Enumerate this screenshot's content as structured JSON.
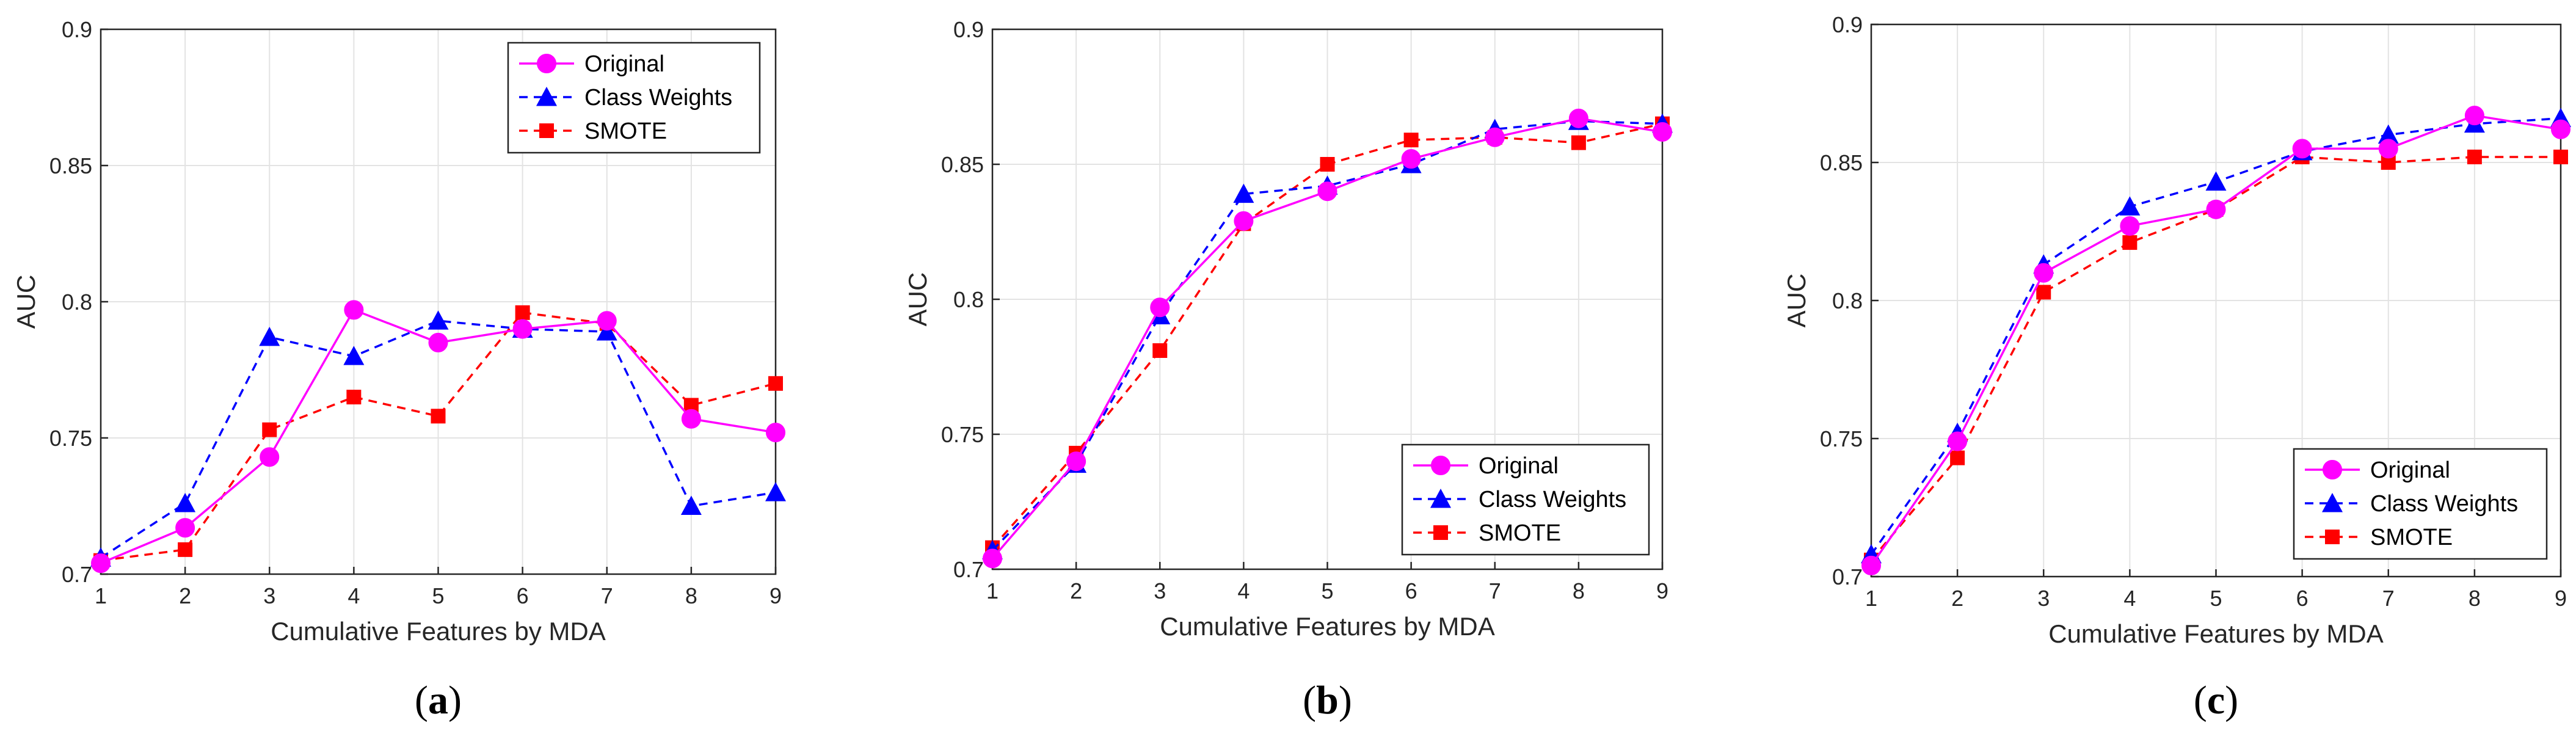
{
  "styles": {
    "colors": {
      "original": "#ff00ff",
      "class_weights": "#0000ff",
      "smote": "#ff0000",
      "grid": "#e3e3e3",
      "axis": "#262626"
    },
    "markers": {
      "original": "circle",
      "class_weights": "triangle-up",
      "smote": "square"
    },
    "line_styles": {
      "original": "solid",
      "class_weights": "dashed",
      "smote": "dashed"
    }
  },
  "chart_data": [
    {
      "type": "line",
      "panel": "a",
      "panel_label_open": "(",
      "panel_label_letter": "a",
      "panel_label_close": ")",
      "xlabel": "Cumulative Features by MDA",
      "ylabel": "AUC",
      "x": [
        1,
        2,
        3,
        4,
        5,
        6,
        7,
        8,
        9
      ],
      "xlim": [
        1,
        9
      ],
      "ylim": [
        0.7,
        0.9
      ],
      "xticks": [
        "1",
        "2",
        "3",
        "4",
        "5",
        "6",
        "7",
        "8",
        "9"
      ],
      "yticks": [
        "0.7",
        "0.75",
        "0.8",
        "0.85",
        "0.9"
      ],
      "grid": true,
      "legend_position": "top-right",
      "series": [
        {
          "name": "Original",
          "key": "original",
          "values": [
            0.704,
            0.717,
            0.743,
            0.797,
            0.785,
            0.79,
            0.793,
            0.757,
            0.752
          ]
        },
        {
          "name": "Class Weights",
          "key": "class_weights",
          "values": [
            0.706,
            0.726,
            0.787,
            0.78,
            0.793,
            0.79,
            0.789,
            0.725,
            0.73
          ]
        },
        {
          "name": "SMOTE",
          "key": "smote",
          "values": [
            0.705,
            0.709,
            0.753,
            0.765,
            0.758,
            0.796,
            0.792,
            0.762,
            0.77
          ]
        }
      ]
    },
    {
      "type": "line",
      "panel": "b",
      "panel_label_open": "(",
      "panel_label_letter": "b",
      "panel_label_close": ")",
      "xlabel": "Cumulative Features by MDA",
      "ylabel": "AUC",
      "x": [
        1,
        2,
        3,
        4,
        5,
        6,
        7,
        8,
        9
      ],
      "xlim": [
        1,
        9
      ],
      "ylim": [
        0.7,
        0.9
      ],
      "xticks": [
        "1",
        "2",
        "3",
        "4",
        "5",
        "6",
        "7",
        "8",
        "9"
      ],
      "yticks": [
        "0.7",
        "0.75",
        "0.8",
        "0.85",
        "0.9"
      ],
      "grid": true,
      "legend_position": "bottom-right",
      "series": [
        {
          "name": "Original",
          "key": "original",
          "values": [
            0.704,
            0.74,
            0.797,
            0.829,
            0.84,
            0.852,
            0.86,
            0.867,
            0.862
          ]
        },
        {
          "name": "Class Weights",
          "key": "class_weights",
          "values": [
            0.707,
            0.739,
            0.794,
            0.839,
            0.842,
            0.85,
            0.863,
            0.866,
            0.865
          ]
        },
        {
          "name": "SMOTE",
          "key": "smote",
          "values": [
            0.708,
            0.743,
            0.781,
            0.828,
            0.85,
            0.859,
            0.86,
            0.858,
            0.865
          ]
        }
      ]
    },
    {
      "type": "line",
      "panel": "c",
      "panel_label_open": "(",
      "panel_label_letter": "c",
      "panel_label_close": ")",
      "xlabel": "Cumulative Features by MDA",
      "ylabel": "AUC",
      "x": [
        1,
        2,
        3,
        4,
        5,
        6,
        7,
        8,
        9
      ],
      "xlim": [
        1,
        9
      ],
      "ylim": [
        0.7,
        0.9
      ],
      "xticks": [
        "1",
        "2",
        "3",
        "4",
        "5",
        "6",
        "7",
        "8",
        "9"
      ],
      "yticks": [
        "0.7",
        "0.75",
        "0.8",
        "0.85",
        "0.9"
      ],
      "grid": true,
      "legend_position": "bottom-right",
      "series": [
        {
          "name": "Original",
          "key": "original",
          "values": [
            0.704,
            0.749,
            0.81,
            0.827,
            0.833,
            0.855,
            0.855,
            0.867,
            0.862
          ]
        },
        {
          "name": "Class Weights",
          "key": "class_weights",
          "values": [
            0.708,
            0.752,
            0.813,
            0.834,
            0.843,
            0.854,
            0.86,
            0.864,
            0.866
          ]
        },
        {
          "name": "SMOTE",
          "key": "smote",
          "values": [
            0.706,
            0.743,
            0.803,
            0.821,
            0.833,
            0.852,
            0.85,
            0.852,
            0.852
          ]
        }
      ]
    }
  ]
}
